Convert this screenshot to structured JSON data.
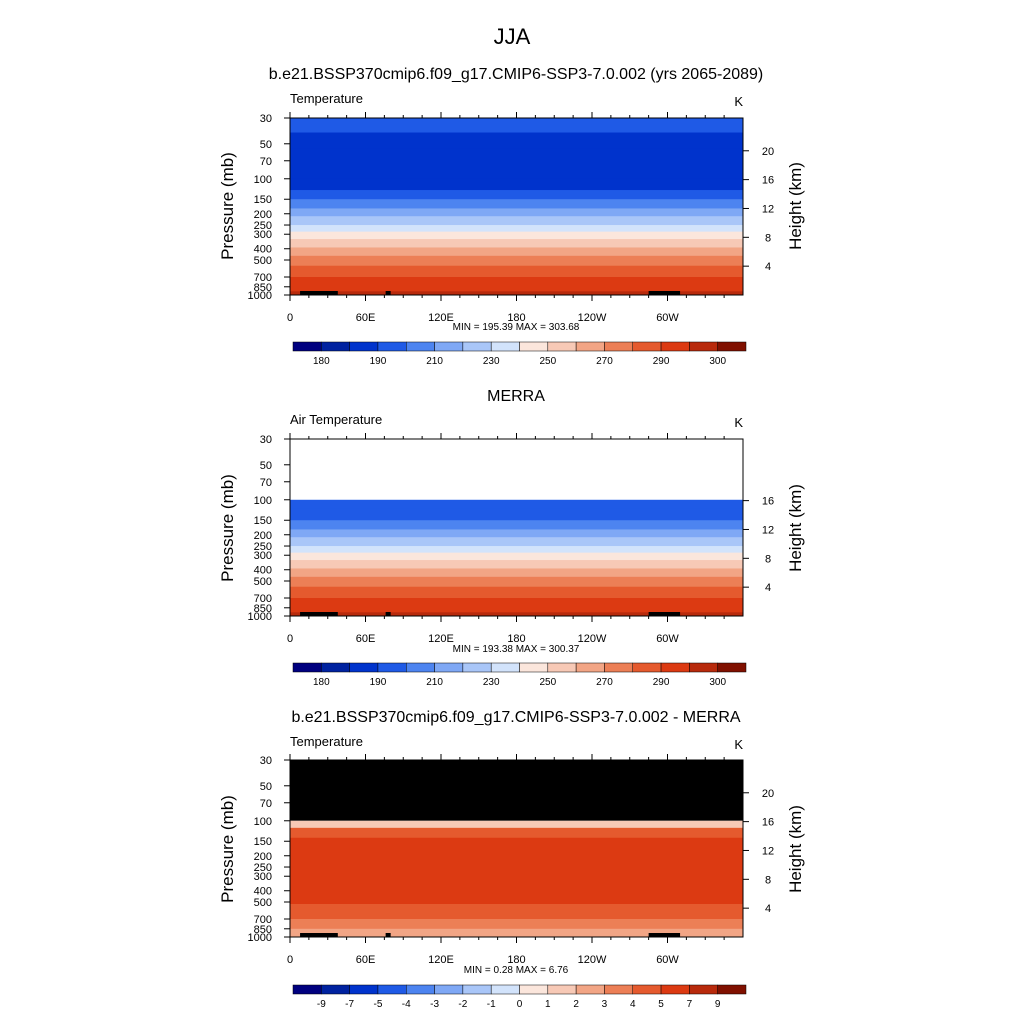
{
  "figure": {
    "season": "JJA"
  },
  "colors": {
    "temp_levels": [
      "#00007f",
      "#0022a0",
      "#0033cc",
      "#1f5ae6",
      "#4d84f0",
      "#7fa8f5",
      "#a9c6f8",
      "#d2e3fb",
      "#fbe6dc",
      "#f7c9b6",
      "#f2a585",
      "#ec7f56",
      "#e55a2e",
      "#dc3a12",
      "#b82a0c",
      "#801000"
    ],
    "diff_levels": [
      "#00007f",
      "#0022a0",
      "#0033cc",
      "#1f5ae6",
      "#4d84f0",
      "#7fa8f5",
      "#a9c6f8",
      "#d2e3fb",
      "#fbe6dc",
      "#f7c9b6",
      "#f2a585",
      "#ec7f56",
      "#e55a2e",
      "#dc3a12",
      "#b82a0c",
      "#801000"
    ],
    "missing": "#000000"
  },
  "chart_data": [
    {
      "type": "heatmap",
      "title": "b.e21.BSSP370cmip6.f09_g17.CMIP6-SSP3-7.0.002 (yrs 2065-2089)",
      "left_title": "Temperature",
      "units": "K",
      "ylabel": "Pressure (mb)",
      "y2label": "Height (km)",
      "x_ticks": [
        "0",
        "60E",
        "120E",
        "180",
        "120W",
        "60W"
      ],
      "x_range": [
        0,
        360
      ],
      "pressure_ticks": [
        30,
        50,
        70,
        100,
        150,
        200,
        250,
        300,
        400,
        500,
        700,
        850,
        1000
      ],
      "height_ticks": [
        4,
        8,
        12,
        16,
        20
      ],
      "stats": "MIN = 195.39  MAX = 303.68",
      "colorbar_labels": [
        "180",
        "190",
        "210",
        "230",
        "250",
        "270",
        "290",
        "300"
      ],
      "profile": [
        {
          "p": 30,
          "bin": 3
        },
        {
          "p": 40,
          "bin": 2
        },
        {
          "p": 55,
          "bin": 2
        },
        {
          "p": 100,
          "bin": 2
        },
        {
          "p": 125,
          "bin": 3
        },
        {
          "p": 150,
          "bin": 4
        },
        {
          "p": 180,
          "bin": 5
        },
        {
          "p": 210,
          "bin": 6
        },
        {
          "p": 250,
          "bin": 7
        },
        {
          "p": 285,
          "bin": 8
        },
        {
          "p": 330,
          "bin": 9
        },
        {
          "p": 390,
          "bin": 10
        },
        {
          "p": 460,
          "bin": 11
        },
        {
          "p": 560,
          "bin": 12
        },
        {
          "p": 700,
          "bin": 13
        },
        {
          "p": 850,
          "bin": 13
        },
        {
          "p": 930,
          "bin": 14
        },
        {
          "p": 1000,
          "bin": 14
        }
      ],
      "data_top": 30
    },
    {
      "type": "heatmap",
      "title": "MERRA",
      "left_title": "Air Temperature",
      "units": "K",
      "ylabel": "Pressure (mb)",
      "y2label": "Height (km)",
      "x_ticks": [
        "0",
        "60E",
        "120E",
        "180",
        "120W",
        "60W"
      ],
      "x_range": [
        0,
        360
      ],
      "pressure_ticks": [
        30,
        50,
        70,
        100,
        150,
        200,
        250,
        300,
        400,
        500,
        700,
        850,
        1000
      ],
      "height_ticks": [
        4,
        8,
        12,
        16
      ],
      "stats": "MIN = 193.38  MAX = 300.37",
      "colorbar_labels": [
        "180",
        "190",
        "210",
        "230",
        "250",
        "270",
        "290",
        "300"
      ],
      "profile": [
        {
          "p": 100,
          "bin": 3
        },
        {
          "p": 120,
          "bin": 3
        },
        {
          "p": 150,
          "bin": 4
        },
        {
          "p": 180,
          "bin": 5
        },
        {
          "p": 210,
          "bin": 6
        },
        {
          "p": 250,
          "bin": 7
        },
        {
          "p": 285,
          "bin": 8
        },
        {
          "p": 330,
          "bin": 9
        },
        {
          "p": 390,
          "bin": 10
        },
        {
          "p": 460,
          "bin": 11
        },
        {
          "p": 560,
          "bin": 12
        },
        {
          "p": 700,
          "bin": 13
        },
        {
          "p": 850,
          "bin": 13
        },
        {
          "p": 930,
          "bin": 14
        },
        {
          "p": 1000,
          "bin": 14
        }
      ],
      "data_top": 100
    },
    {
      "type": "heatmap",
      "title": "b.e21.BSSP370cmip6.f09_g17.CMIP6-SSP3-7.0.002 - MERRA",
      "left_title": "Temperature",
      "units": "K",
      "ylabel": "Pressure (mb)",
      "y2label": "Height (km)",
      "x_ticks": [
        "0",
        "60E",
        "120E",
        "180",
        "120W",
        "60W"
      ],
      "x_range": [
        0,
        360
      ],
      "pressure_ticks": [
        30,
        50,
        70,
        100,
        150,
        200,
        250,
        300,
        400,
        500,
        700,
        850,
        1000
      ],
      "height_ticks": [
        4,
        8,
        12,
        16,
        20
      ],
      "stats": "MIN =   0.28  MAX =   6.76",
      "colorbar_labels": [
        "-9",
        "-7",
        "-5",
        "-4",
        "-3",
        "-2",
        "-1",
        "0",
        "1",
        "2",
        "3",
        "4",
        "5",
        "7",
        "9"
      ],
      "profile": [
        {
          "p": 100,
          "bin": 9
        },
        {
          "p": 115,
          "bin": 12
        },
        {
          "p": 140,
          "bin": 13
        },
        {
          "p": 450,
          "bin": 13
        },
        {
          "p": 520,
          "bin": 12
        },
        {
          "p": 700,
          "bin": 11
        },
        {
          "p": 850,
          "bin": 10
        },
        {
          "p": 1000,
          "bin": 10
        }
      ],
      "data_top": 100,
      "missing_above": 100
    }
  ]
}
